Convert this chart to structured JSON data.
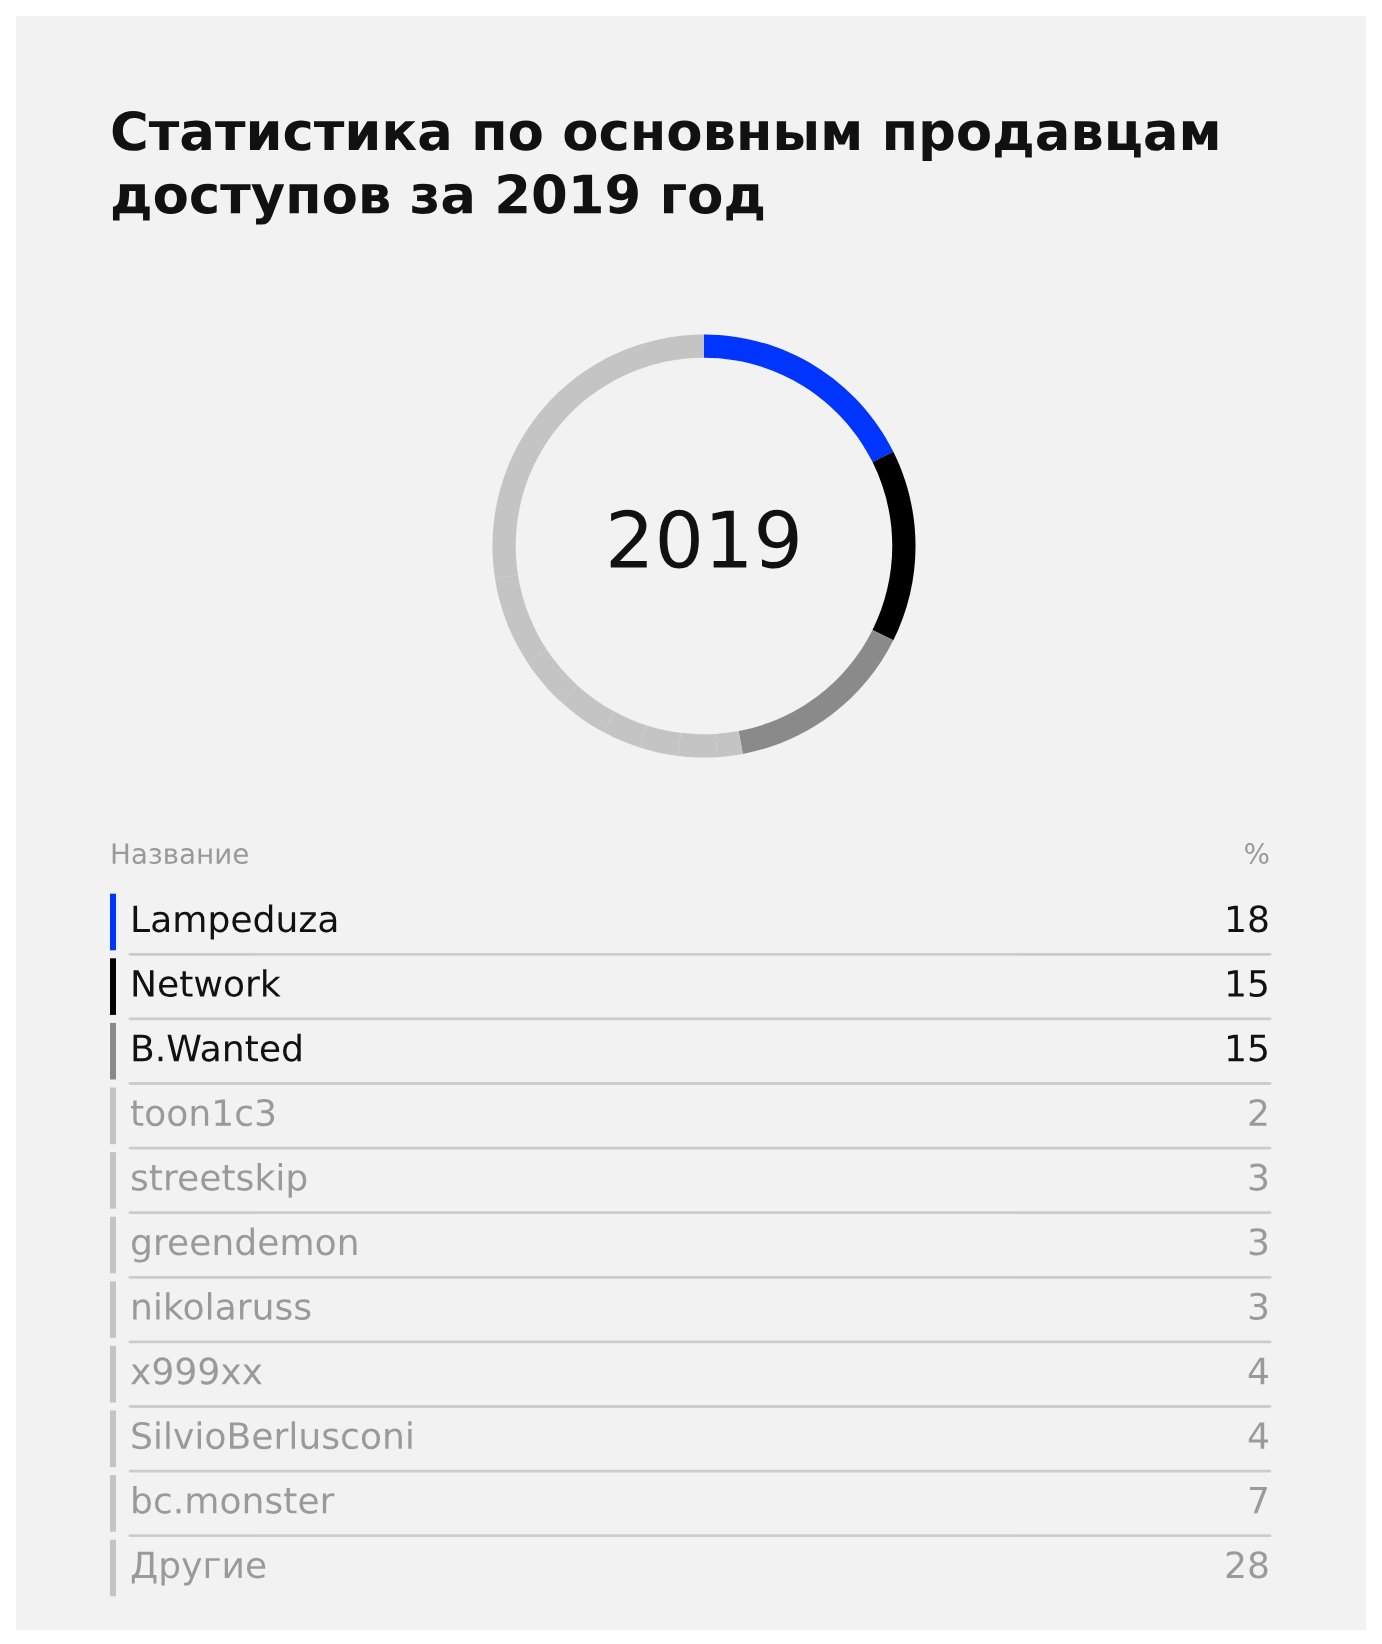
{
  "chart_data": {
    "type": "donut",
    "title": "Статистика по основным продавцам\nдоступов за 2019 год",
    "categories": [
      "Lampeduza",
      "Network",
      "B.Wanted",
      "toon1c3",
      "streetskip",
      "greendemon",
      "nikolaruss",
      "x999xx",
      "SilvioBerlusconi",
      "bc.monster",
      "Другие"
    ],
    "values": [
      18,
      15,
      15,
      2,
      3,
      3,
      3,
      4,
      4,
      7,
      28
    ],
    "colors": [
      "#0035ff",
      "#000000",
      "#8a8a8a",
      "#c4c4c4",
      "#c4c4c4",
      "#c4c4c4",
      "#c4c4c4",
      "#c4c4c4",
      "#c4c4c4",
      "#c4c4c4",
      "#c4c4c4"
    ],
    "legend_title": "Название",
    "annotations": [
      "2019",
      "%"
    ],
    "legend": "bottom",
    "data_labels": true
  }
}
